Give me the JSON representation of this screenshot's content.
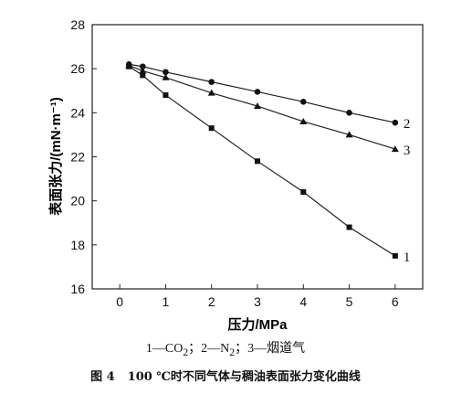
{
  "chart_data": {
    "type": "line",
    "xlabel": "压力/MPa",
    "ylabel": "表面张力/(mN·m⁻¹)",
    "xlim": [
      -0.6,
      6.6
    ],
    "ylim": [
      16,
      28
    ],
    "x_ticks": [
      0,
      1,
      2,
      3,
      4,
      5,
      6
    ],
    "y_ticks": [
      16,
      18,
      20,
      22,
      24,
      26,
      28
    ],
    "grid": false,
    "series": [
      {
        "name": "1",
        "marker": "square",
        "x": [
          0.2,
          0.5,
          1,
          2,
          3,
          4,
          5,
          6
        ],
        "y": [
          26.1,
          25.7,
          24.8,
          23.3,
          21.8,
          20.4,
          18.8,
          17.5
        ]
      },
      {
        "name": "2",
        "marker": "circle",
        "x": [
          0.2,
          0.5,
          1,
          2,
          3,
          4,
          5,
          6
        ],
        "y": [
          26.2,
          26.1,
          25.85,
          25.4,
          24.95,
          24.5,
          24.0,
          23.55
        ]
      },
      {
        "name": "3",
        "marker": "triangle",
        "x": [
          0.2,
          0.5,
          1,
          2,
          3,
          4,
          5,
          6
        ],
        "y": [
          26.15,
          25.9,
          25.6,
          24.9,
          24.3,
          23.6,
          23.0,
          22.35
        ]
      }
    ]
  },
  "legend": {
    "s1": "1—CO",
    "s1_sub": "2",
    "sep1": "；",
    "s2": "2—N",
    "s2_sub": "2",
    "sep2": "；",
    "s3": "3—烟道气"
  },
  "caption": {
    "figure_no": "图 4",
    "text": "100 ℃时不同气体与稠油表面张力变化曲线"
  }
}
